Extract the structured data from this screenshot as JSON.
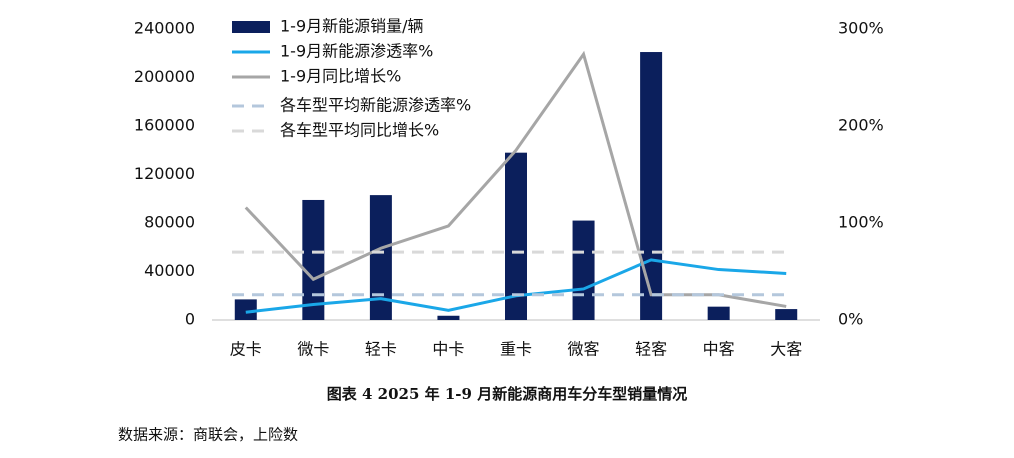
{
  "chart_data": {
    "type": "bar-line",
    "caption": "图表 4 2025 年 1-9 月新能源商用车分车型销量情况",
    "source": "数据来源：商联会，上险数",
    "categories": [
      "皮卡",
      "微卡",
      "轻卡",
      "中卡",
      "重卡",
      "微客",
      "轻客",
      "中客",
      "大客"
    ],
    "ylim": [
      0,
      240000
    ],
    "yticks": [
      0,
      40000,
      80000,
      120000,
      160000,
      200000,
      240000
    ],
    "y2lim": [
      0,
      300
    ],
    "y2ticks": [
      {
        "value": 0,
        "label": "0%"
      },
      {
        "value": 100,
        "label": "100%"
      },
      {
        "value": 200,
        "label": "200%"
      },
      {
        "value": 300,
        "label": "300%"
      }
    ],
    "series": [
      {
        "name": "1-9月新能源销量/辆",
        "kind": "bar",
        "color": "#0b1f5c",
        "values": [
          17000,
          99000,
          103000,
          3500,
          138000,
          82000,
          221000,
          11000,
          9000
        ]
      },
      {
        "name": "1-9月新能源渗透率%",
        "kind": "line",
        "axis": "y2",
        "color": "#1aa7e8",
        "values": [
          8,
          16,
          22,
          10,
          25,
          32,
          62,
          52,
          48
        ]
      },
      {
        "name": "1-9月同比增长%",
        "kind": "line",
        "axis": "y2",
        "color": "#a6a6a6",
        "values": [
          116,
          42,
          74,
          97,
          175,
          274,
          26,
          26,
          14
        ]
      },
      {
        "name": "各车型平均新能源渗透率%",
        "kind": "hline",
        "axis": "y2",
        "color": "#b4c7dc",
        "value": 26
      },
      {
        "name": "各车型平均同比增长%",
        "kind": "hline",
        "axis": "y2",
        "color": "#d9d9d9",
        "value": 70
      }
    ]
  }
}
